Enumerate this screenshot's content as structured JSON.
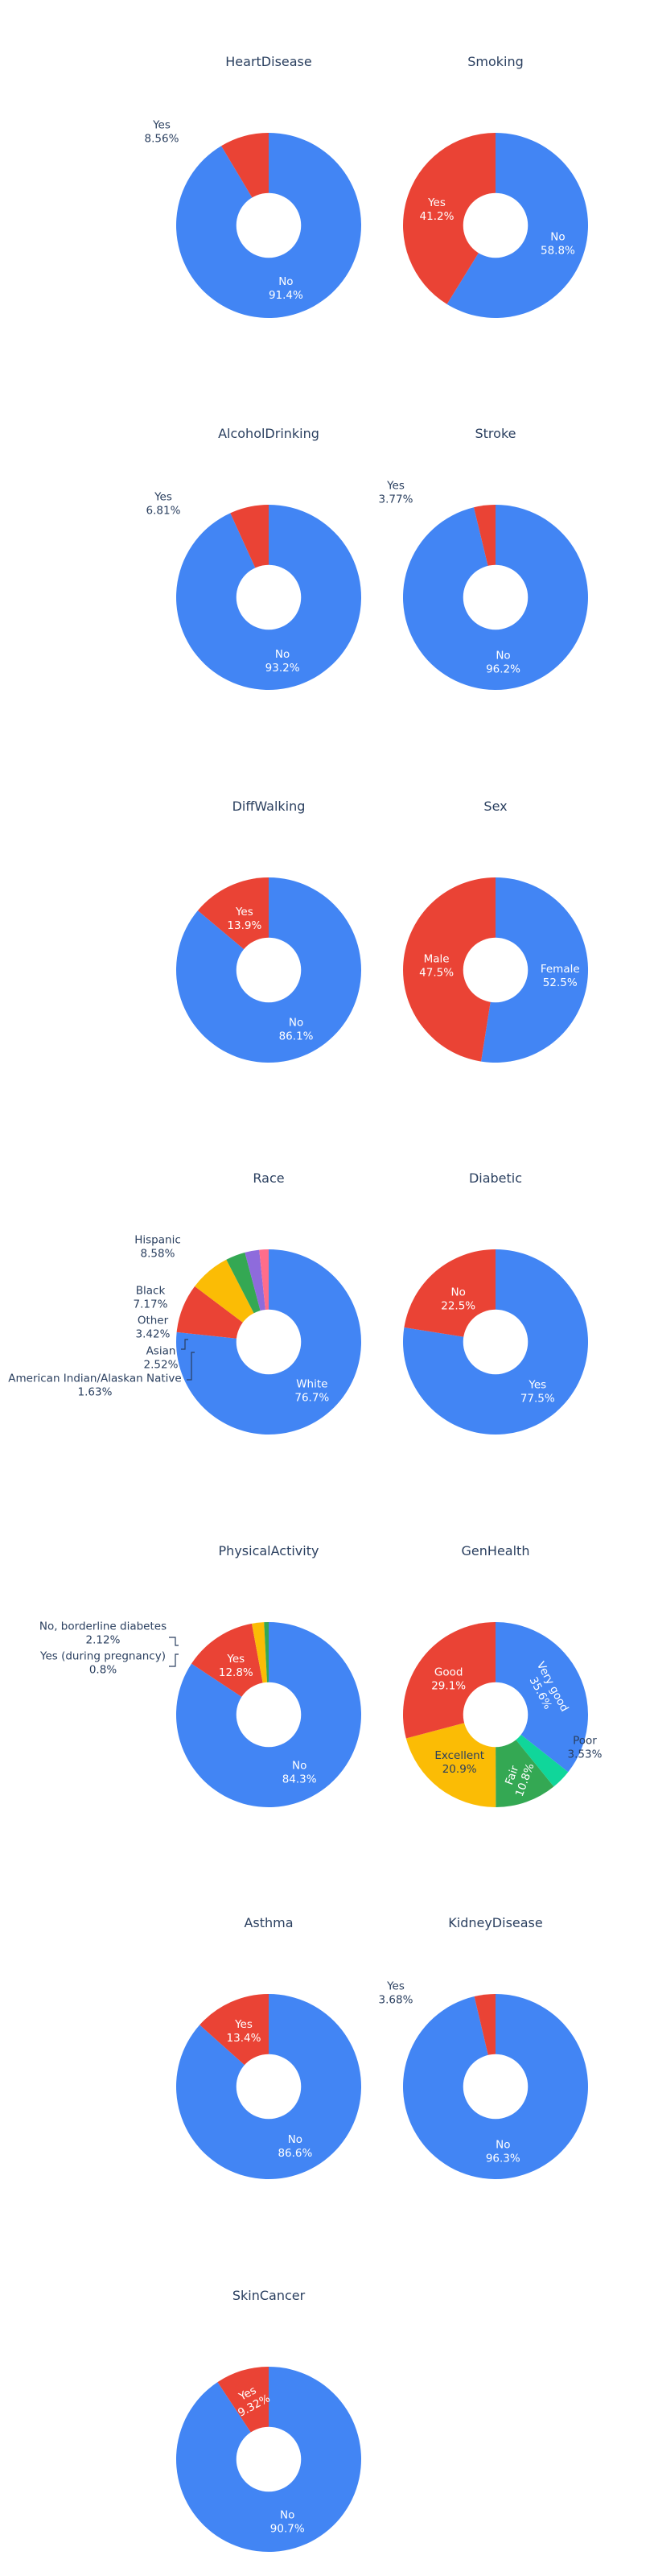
{
  "colors": {
    "blue": "#4285f4",
    "red": "#ea4335",
    "yellow": "#fbbc05",
    "green": "#34a853",
    "purple": "#8e6bdc",
    "pink": "#ff6d8a",
    "teal": "#10d69a",
    "text": "#2a3f5f",
    "background": "#ffffff"
  },
  "chart_data": [
    {
      "type": "pie",
      "hole": 0.35,
      "title": "HeartDisease",
      "slices": [
        {
          "label": "No",
          "value": 91.4,
          "text": "91.4%",
          "color": "#4285f4"
        },
        {
          "label": "Yes",
          "value": 8.56,
          "text": "8.56%",
          "color": "#ea4335"
        }
      ]
    },
    {
      "type": "pie",
      "hole": 0.35,
      "title": "Smoking",
      "slices": [
        {
          "label": "No",
          "value": 58.8,
          "text": "58.8%",
          "color": "#4285f4"
        },
        {
          "label": "Yes",
          "value": 41.2,
          "text": "41.2%",
          "color": "#ea4335"
        }
      ]
    },
    {
      "type": "pie",
      "hole": 0.35,
      "title": "AlcoholDrinking",
      "slices": [
        {
          "label": "No",
          "value": 93.2,
          "text": "93.2%",
          "color": "#4285f4"
        },
        {
          "label": "Yes",
          "value": 6.81,
          "text": "6.81%",
          "color": "#ea4335"
        }
      ]
    },
    {
      "type": "pie",
      "hole": 0.35,
      "title": "Stroke",
      "slices": [
        {
          "label": "No",
          "value": 96.2,
          "text": "96.2%",
          "color": "#4285f4"
        },
        {
          "label": "Yes",
          "value": 3.77,
          "text": "3.77%",
          "color": "#ea4335"
        }
      ]
    },
    {
      "type": "pie",
      "hole": 0.35,
      "title": "DiffWalking",
      "slices": [
        {
          "label": "No",
          "value": 86.1,
          "text": "86.1%",
          "color": "#4285f4"
        },
        {
          "label": "Yes",
          "value": 13.9,
          "text": "13.9%",
          "color": "#ea4335"
        }
      ]
    },
    {
      "type": "pie",
      "hole": 0.35,
      "title": "Sex",
      "slices": [
        {
          "label": "Female",
          "value": 52.5,
          "text": "52.5%",
          "color": "#4285f4"
        },
        {
          "label": "Male",
          "value": 47.5,
          "text": "47.5%",
          "color": "#ea4335"
        }
      ]
    },
    {
      "type": "pie",
      "hole": 0.35,
      "title": "Race",
      "slices": [
        {
          "label": "White",
          "value": 76.7,
          "text": "76.7%",
          "color": "#4285f4"
        },
        {
          "label": "Hispanic",
          "value": 8.58,
          "text": "8.58%",
          "color": "#ea4335"
        },
        {
          "label": "Black",
          "value": 7.17,
          "text": "7.17%",
          "color": "#fbbc05"
        },
        {
          "label": "Other",
          "value": 3.42,
          "text": "3.42%",
          "color": "#34a853"
        },
        {
          "label": "Asian",
          "value": 2.52,
          "text": "2.52%",
          "color": "#8e6bdc"
        },
        {
          "label": "American Indian/Alaskan Native",
          "value": 1.63,
          "text": "1.63%",
          "color": "#ff6d8a"
        }
      ]
    },
    {
      "type": "pie",
      "hole": 0.35,
      "title": "Diabetic",
      "slices": [
        {
          "label": "Yes",
          "value": 77.5,
          "text": "77.5%",
          "color": "#4285f4"
        },
        {
          "label": "No",
          "value": 22.5,
          "text": "22.5%",
          "color": "#ea4335"
        }
      ]
    },
    {
      "type": "pie",
      "hole": 0.35,
      "title": "PhysicalActivity",
      "slices": [
        {
          "label": "No",
          "value": 84.3,
          "text": "84.3%",
          "color": "#4285f4"
        },
        {
          "label": "Yes",
          "value": 12.8,
          "text": "12.8%",
          "color": "#ea4335"
        },
        {
          "label": "No, borderline diabetes",
          "value": 2.12,
          "text": "2.12%",
          "color": "#fbbc05"
        },
        {
          "label": "Yes (during pregnancy)",
          "value": 0.8,
          "text": "0.8%",
          "color": "#34a853"
        }
      ]
    },
    {
      "type": "pie",
      "hole": 0.35,
      "title": "GenHealth",
      "slices": [
        {
          "label": "Very good",
          "value": 35.6,
          "text": "35.6%",
          "color": "#4285f4"
        },
        {
          "label": "Poor",
          "value": 3.53,
          "text": "3.53%",
          "color": "#10d69a"
        },
        {
          "label": "Fair",
          "value": 10.8,
          "text": "10.8%",
          "color": "#34a853"
        },
        {
          "label": "Excellent",
          "value": 20.9,
          "text": "20.9%",
          "color": "#fbbc05"
        },
        {
          "label": "Good",
          "value": 29.1,
          "text": "29.1%",
          "color": "#ea4335"
        }
      ]
    },
    {
      "type": "pie",
      "hole": 0.35,
      "title": "Asthma",
      "slices": [
        {
          "label": "No",
          "value": 86.6,
          "text": "86.6%",
          "color": "#4285f4"
        },
        {
          "label": "Yes",
          "value": 13.4,
          "text": "13.4%",
          "color": "#ea4335"
        }
      ]
    },
    {
      "type": "pie",
      "hole": 0.35,
      "title": "KidneyDisease",
      "slices": [
        {
          "label": "No",
          "value": 96.3,
          "text": "96.3%",
          "color": "#4285f4"
        },
        {
          "label": "Yes",
          "value": 3.68,
          "text": "3.68%",
          "color": "#ea4335"
        }
      ]
    },
    {
      "type": "pie",
      "hole": 0.35,
      "title": "SkinCancer",
      "slices": [
        {
          "label": "No",
          "value": 90.7,
          "text": "90.7%",
          "color": "#4285f4"
        },
        {
          "label": "Yes",
          "value": 9.32,
          "text": "9.32%",
          "color": "#ea4335"
        }
      ]
    }
  ]
}
